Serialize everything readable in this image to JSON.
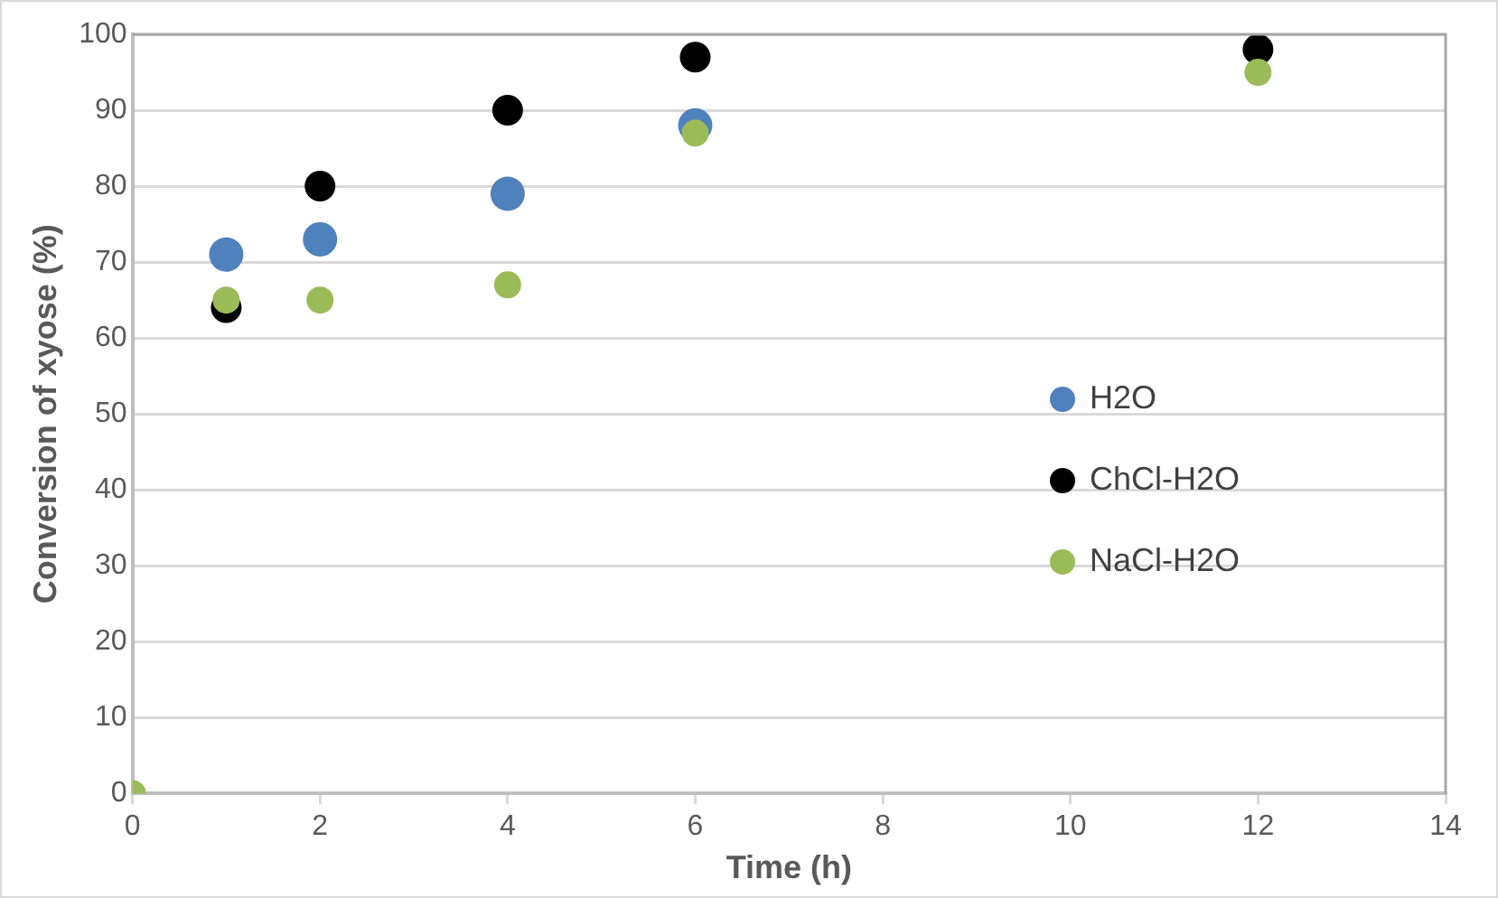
{
  "chart_data": {
    "type": "scatter",
    "xlabel": "Time (h)",
    "ylabel": "Conversion of xyose (%)",
    "xlim": [
      0,
      14
    ],
    "xticks": [
      0,
      2,
      4,
      6,
      8,
      10,
      12,
      14
    ],
    "ylim": [
      0,
      100
    ],
    "yticks": [
      0,
      10,
      20,
      30,
      40,
      50,
      60,
      70,
      80,
      90,
      100
    ],
    "grid": "y",
    "legend": "right",
    "marker": "circle",
    "x": [
      0,
      1,
      2,
      4,
      6,
      12
    ],
    "series": [
      {
        "name": "H2O",
        "color": "#4f81bd",
        "values": [
          null,
          71,
          73,
          79,
          88,
          null
        ]
      },
      {
        "name": "ChCl-H2O",
        "color": "#000000",
        "values": [
          null,
          64,
          80,
          90,
          97,
          98
        ]
      },
      {
        "name": "NaCl-H2O",
        "color": "#9bbb59",
        "values": [
          0,
          65,
          65,
          67,
          87,
          95
        ]
      }
    ]
  }
}
